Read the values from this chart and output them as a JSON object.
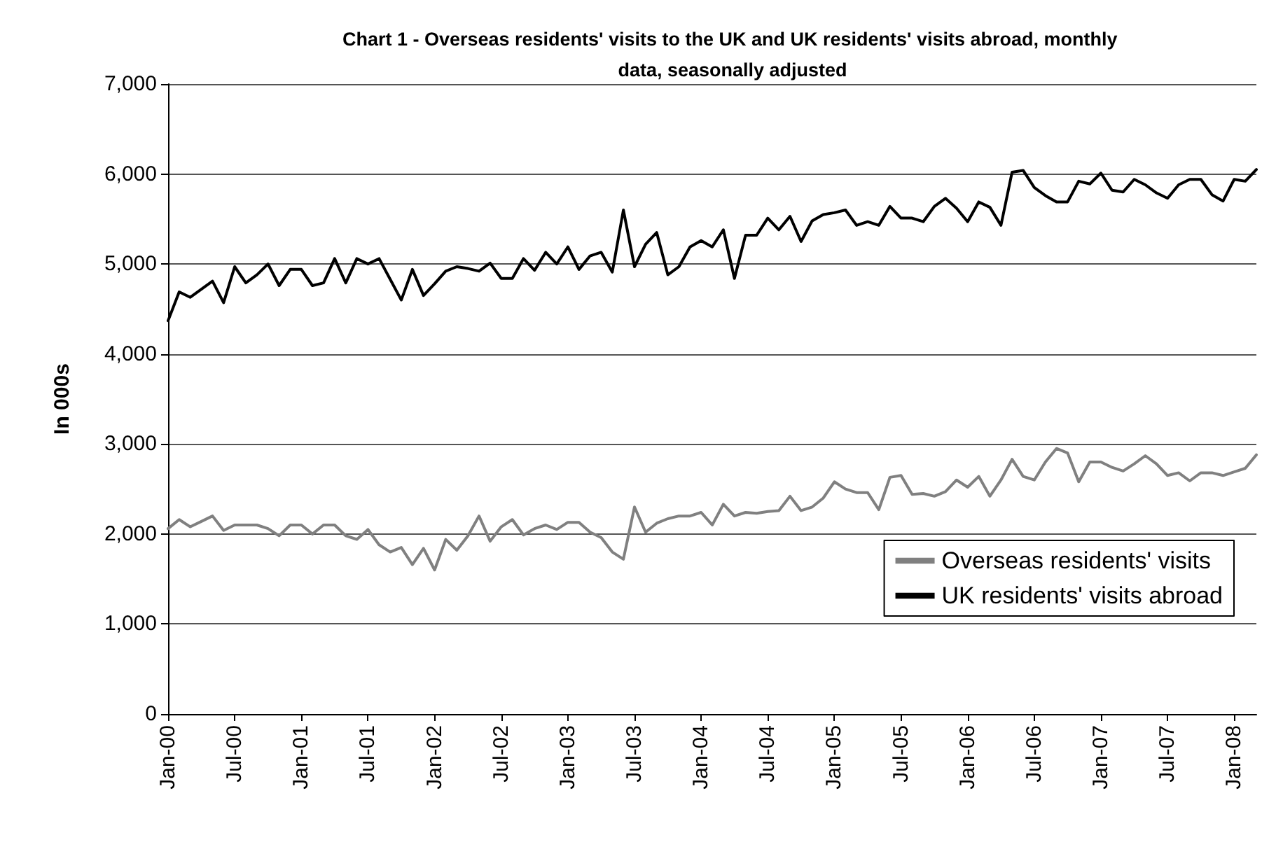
{
  "chart_data": {
    "type": "line",
    "title": "Chart 1 - Overseas residents' visits to the UK and UK residents' visits abroad, monthly data, seasonally adjusted",
    "ylabel": "In 000s",
    "categories": [
      "Jan-00",
      null,
      null,
      null,
      null,
      null,
      "Jul-00",
      null,
      null,
      null,
      null,
      null,
      "Jan-01",
      null,
      null,
      null,
      null,
      null,
      "Jul-01",
      null,
      null,
      null,
      null,
      null,
      "Jan-02",
      null,
      null,
      null,
      null,
      null,
      "Jul-02",
      null,
      null,
      null,
      null,
      null,
      "Jan-03",
      null,
      null,
      null,
      null,
      null,
      "Jul-03",
      null,
      null,
      null,
      null,
      null,
      "Jan-04",
      null,
      null,
      null,
      null,
      null,
      "Jul-04",
      null,
      null,
      null,
      null,
      null,
      "Jan-05",
      null,
      null,
      null,
      null,
      null,
      "Jul-05",
      null,
      null,
      null,
      null,
      null,
      "Jan-06",
      null,
      null,
      null,
      null,
      null,
      "Jul-06",
      null,
      null,
      null,
      null,
      null,
      "Jan-07",
      null,
      null,
      null,
      null,
      null,
      "Jul-07",
      null,
      null,
      null,
      null,
      null,
      "Jan-08",
      null,
      null
    ],
    "series": [
      {
        "name": "Overseas residents' visits",
        "color": "#808080",
        "values": [
          2060,
          2160,
          2080,
          2140,
          2200,
          2040,
          2100,
          2100,
          2100,
          2060,
          1980,
          2100,
          2100,
          2000,
          2100,
          2100,
          1980,
          1940,
          2050,
          1880,
          1800,
          1850,
          1660,
          1840,
          1600,
          1940,
          1820,
          1980,
          2200,
          1920,
          2080,
          2160,
          1990,
          2060,
          2100,
          2050,
          2130,
          2130,
          2020,
          1960,
          1800,
          1720,
          2300,
          2020,
          2120,
          2170,
          2200,
          2200,
          2240,
          2100,
          2330,
          2200,
          2240,
          2230,
          2250,
          2260,
          2420,
          2260,
          2300,
          2400,
          2580,
          2500,
          2460,
          2460,
          2270,
          2630,
          2650,
          2440,
          2450,
          2420,
          2470,
          2600,
          2520,
          2640,
          2420,
          2600,
          2830,
          2640,
          2600,
          2800,
          2950,
          2900,
          2580,
          2800,
          2800,
          2740,
          2700,
          2780,
          2870,
          2780,
          2650,
          2680,
          2590,
          2680,
          2680,
          2650,
          2690,
          2730,
          2880
        ]
      },
      {
        "name": "UK residents' visits abroad",
        "color": "#000000",
        "values": [
          4370,
          4690,
          4630,
          4720,
          4810,
          4570,
          4970,
          4790,
          4880,
          5000,
          4760,
          4940,
          4940,
          4760,
          4790,
          5060,
          4790,
          5060,
          5000,
          5060,
          4830,
          4600,
          4940,
          4650,
          4780,
          4920,
          4970,
          4950,
          4920,
          5010,
          4840,
          4840,
          5060,
          4930,
          5130,
          5000,
          5190,
          4940,
          5090,
          5130,
          4910,
          5600,
          4970,
          5220,
          5350,
          4880,
          4970,
          5190,
          5260,
          5190,
          5380,
          4840,
          5320,
          5320,
          5510,
          5380,
          5530,
          5250,
          5480,
          5550,
          5570,
          5600,
          5430,
          5470,
          5430,
          5640,
          5510,
          5510,
          5470,
          5640,
          5730,
          5620,
          5470,
          5690,
          5630,
          5430,
          6020,
          6040,
          5850,
          5760,
          5690,
          5690,
          5920,
          5890,
          6010,
          5820,
          5800,
          5940,
          5880,
          5790,
          5730,
          5880,
          5940,
          5940,
          5770,
          5700,
          5940,
          5920,
          6050
        ]
      }
    ],
    "ylim": [
      0,
      7000
    ],
    "yticks": [
      {
        "value": 0,
        "label": "0"
      },
      {
        "value": 1000,
        "label": "1,000"
      },
      {
        "value": 2000,
        "label": "2,000"
      },
      {
        "value": 3000,
        "label": "3,000"
      },
      {
        "value": 4000,
        "label": "4,000"
      },
      {
        "value": 5000,
        "label": "5,000"
      },
      {
        "value": 6000,
        "label": "6,000"
      },
      {
        "value": 7000,
        "label": "7,000"
      }
    ],
    "grid": "y",
    "legend": "bottom right",
    "marker": "none",
    "line_style": "solid"
  }
}
